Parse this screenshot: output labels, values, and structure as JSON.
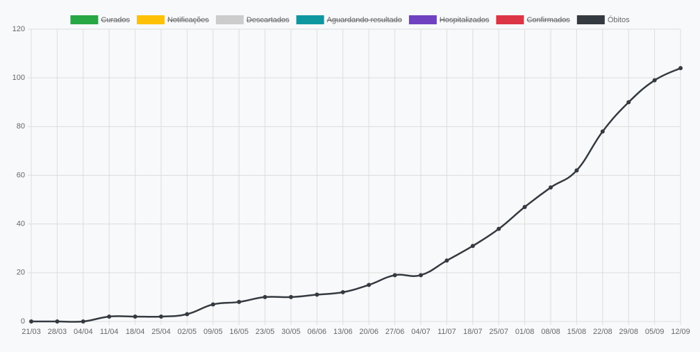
{
  "chart_data": {
    "type": "line",
    "categories": [
      "21/03",
      "28/03",
      "04/04",
      "11/04",
      "18/04",
      "25/04",
      "02/05",
      "09/05",
      "16/05",
      "23/05",
      "30/05",
      "06/06",
      "13/06",
      "20/06",
      "27/06",
      "04/07",
      "11/07",
      "18/07",
      "25/07",
      "01/08",
      "08/08",
      "15/08",
      "22/08",
      "29/08",
      "05/09",
      "12/09"
    ],
    "series": [
      {
        "name": "Curados",
        "color": "#28a745",
        "hidden": true
      },
      {
        "name": "Notificações",
        "color": "#ffc107",
        "hidden": true
      },
      {
        "name": "Descartados",
        "color": "#cccccc",
        "hidden": true
      },
      {
        "name": "Aguardando resultado",
        "color": "#0f97a0",
        "hidden": true
      },
      {
        "name": "Hospitalizados",
        "color": "#6f42c1",
        "hidden": true
      },
      {
        "name": "Confirmados",
        "color": "#dc3545",
        "hidden": true
      },
      {
        "name": "Óbitos",
        "color": "#343a40",
        "values": [
          0,
          0,
          0,
          2,
          2,
          2,
          3,
          7,
          8,
          10,
          10,
          11,
          12,
          15,
          19,
          19,
          25,
          31,
          38,
          47,
          55,
          62,
          78,
          90,
          99,
          104
        ]
      }
    ],
    "ylim": [
      0,
      120
    ],
    "yticks": [
      0,
      20,
      40,
      60,
      80,
      100,
      120
    ],
    "grid": true,
    "legend": "top"
  }
}
